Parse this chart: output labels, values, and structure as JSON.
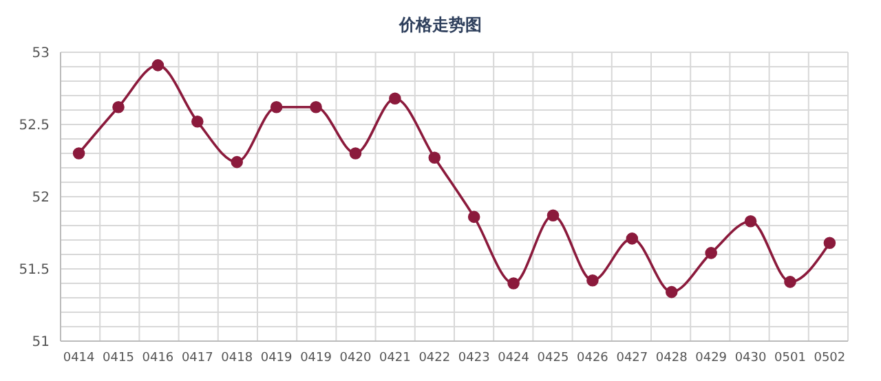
{
  "chart_data": {
    "type": "line",
    "title": "价格走势图",
    "categories": [
      "0414",
      "0415",
      "0416",
      "0417",
      "0418",
      "0419",
      "0419",
      "0420",
      "0421",
      "0422",
      "0423",
      "0424",
      "0425",
      "0426",
      "0427",
      "0428",
      "0429",
      "0430",
      "0501",
      "0502"
    ],
    "series": [
      {
        "color": "#8b1a3c",
        "values": [
          52.3,
          52.62,
          52.91,
          52.52,
          52.24,
          52.62,
          52.62,
          52.3,
          52.68,
          52.27,
          51.86,
          51.4,
          51.87,
          51.42,
          51.71,
          51.34,
          51.61,
          51.83,
          51.41,
          51.68
        ]
      }
    ],
    "ylim": [
      51,
      53
    ],
    "yticks": [
      51,
      {
        "value": 51.1,
        "label": null
      },
      {
        "value": 51.2,
        "label": null
      },
      {
        "value": 51.3,
        "label": null
      },
      {
        "value": 51.4,
        "label": null
      },
      51.5,
      {
        "value": 51.6,
        "label": null
      },
      {
        "value": 51.7,
        "label": null
      },
      {
        "value": 51.8,
        "label": null
      },
      {
        "value": 51.9,
        "label": null
      },
      52,
      {
        "value": 52.1,
        "label": null
      },
      {
        "value": 52.2,
        "label": null
      },
      {
        "value": 52.3,
        "label": null
      },
      {
        "value": 52.4,
        "label": null
      },
      52.5,
      {
        "value": 52.6,
        "label": null
      },
      {
        "value": 52.7,
        "label": null
      },
      {
        "value": 52.8,
        "label": null
      },
      {
        "value": 52.9,
        "label": null
      },
      53
    ],
    "grid": true,
    "marker": "circle",
    "line_style": "solid"
  }
}
